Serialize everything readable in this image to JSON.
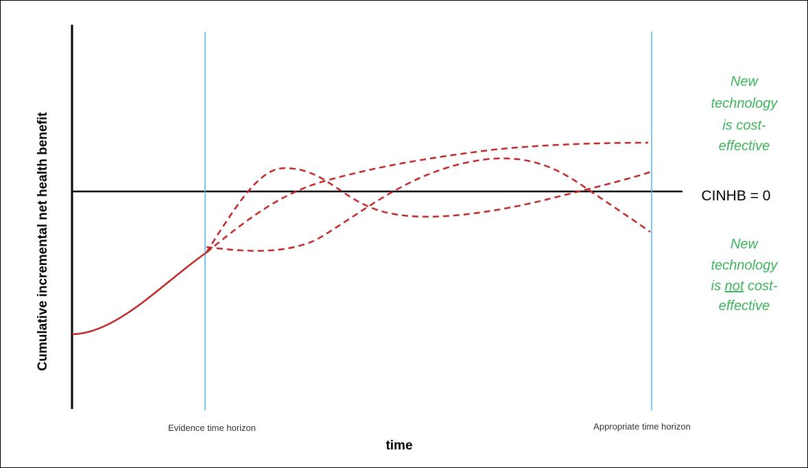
{
  "labels": {
    "y_axis": "Cumulative incremental net health benefit",
    "x_axis": "time",
    "evidence_horizon": "Evidence time horizon",
    "appropriate_horizon": "Appropriate time horizon",
    "zero_line": "CINHB = 0",
    "upper_note": [
      "New",
      "technology",
      "is cost-",
      "effective"
    ],
    "lower_note": {
      "line1": "New",
      "line2": "technology",
      "line3_prefix": "is ",
      "line3_emph": "not",
      "line3_suffix": " cost-",
      "line4": "effective"
    }
  },
  "colors": {
    "axis": "#000000",
    "horizon_line": "#4db8e8",
    "curve": "#c0282a",
    "note_text": "#3cb35a"
  }
}
